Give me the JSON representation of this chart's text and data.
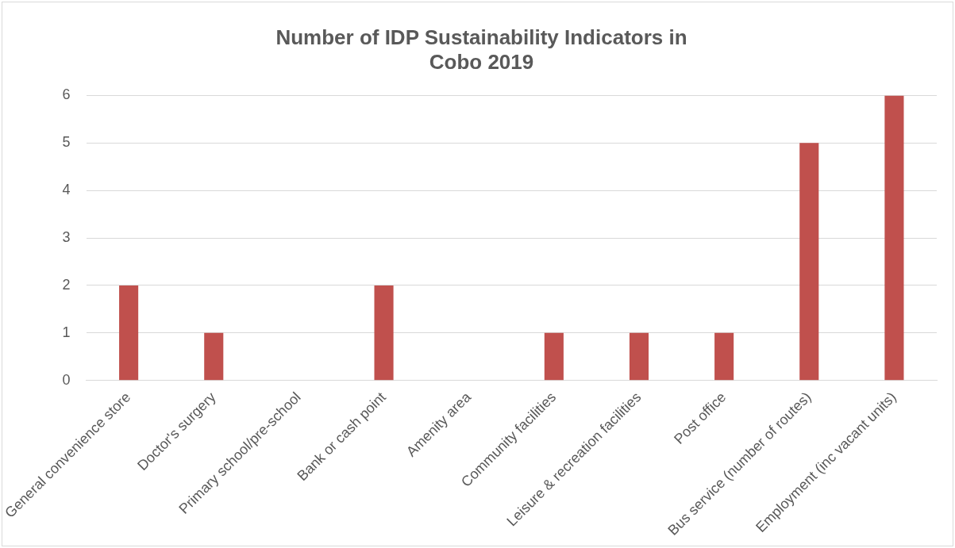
{
  "chart_data": {
    "type": "bar",
    "title": [
      "Number of IDP Sustainability Indicators in",
      "Cobo 2019"
    ],
    "categories": [
      "General convenience store",
      "Doctor's surgery",
      "Primary school/pre-school",
      "Bank or cash point",
      "Amenity area",
      "Community facilities",
      "Leisure & recreation facilities",
      "Post office",
      "Bus service (number of routes)",
      "Employment (inc vacant units)"
    ],
    "values": [
      2,
      1,
      0,
      2,
      0,
      1,
      1,
      1,
      5,
      6
    ],
    "color": "#c0504d",
    "ylim": [
      0,
      6
    ],
    "yticks": [
      0,
      1,
      2,
      3,
      4,
      5,
      6
    ],
    "grid": "y",
    "legend": false
  }
}
